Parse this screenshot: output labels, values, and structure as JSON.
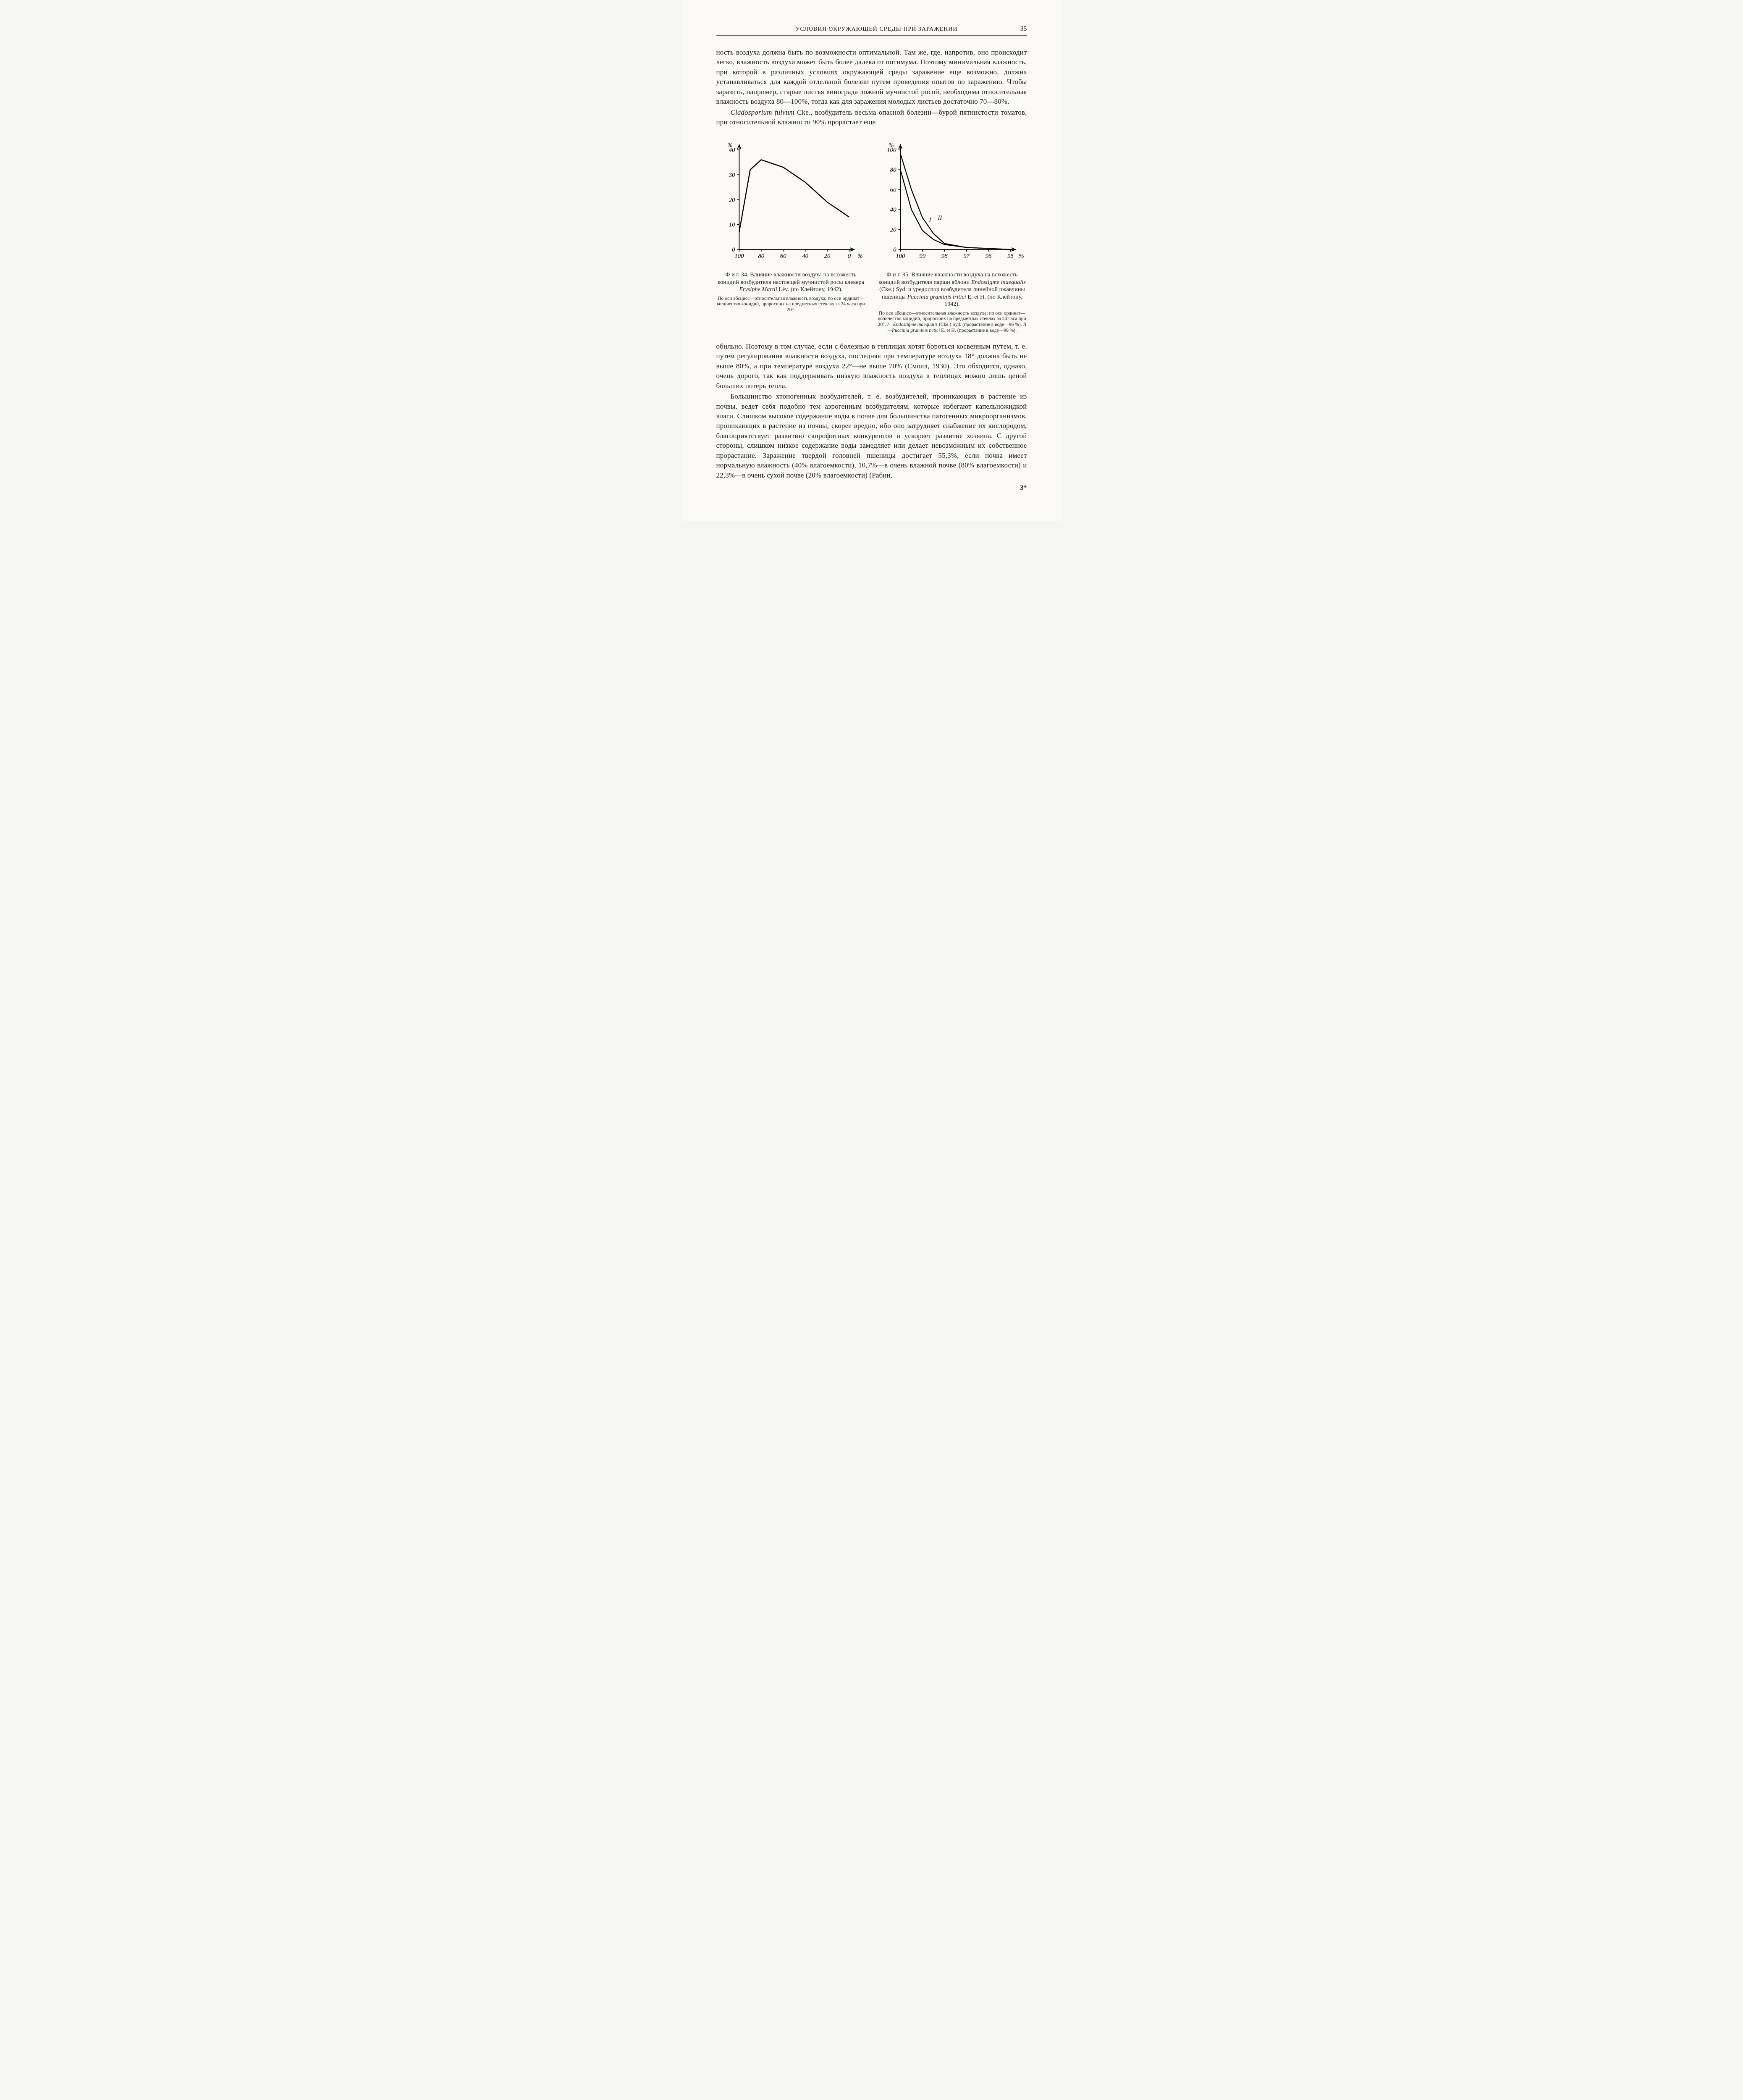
{
  "page": {
    "running_head": "УСЛОВИЯ ОКРУЖАЮЩЕЙ СРЕДЫ ПРИ ЗАРАЖЕНИИ",
    "page_number": "35",
    "signature": "3*"
  },
  "paragraphs": {
    "p1": "ность воздуха должна быть по возможности оптимальной. Там же, где, напротив, оно происходит легко, влажность воздуха может быть более далека от оптимума. Поэтому минимальная влажность, при которой в различных условиях окружающей среды заражение еще возможно, должна устанавливаться для каждой отдельной болезни путем проведения опытов по заражению. Чтобы заразить, например, старые листья винограда ложной мучнистой росой, необходима относительная влажность воздуха 80—100%, тогда как для заражения молодых листьев достаточно 70—80%.",
    "p2_a": "Cladosporium fulvum",
    "p2_b": " Cke., возбудитель весьма опасной болезни—бурой пятнистости томатов, при относительной влажности 90% прорастает еще",
    "p3": "обильно. Поэтому в том случае, если с болезнью в теплицах хотят бороться косвенным путем, т. е. путем регулирования влажности воздуха, последняя при температуре воздуха 18° должна быть не выше 80%, а при температуре воздуха 22°—не выше 70% (Смолл, 1930). Это обходится, однако, очень дорого, так как поддерживать низкую влажность воздуха в теплицах можно лишь ценой больших потерь тепла.",
    "p4": "Большинство хтоногенных возбудителей, т. е. возбудителей, проникающих в растение из почвы, ведет себя подобно тем аэрогенным возбудителям, которые избегают капельножидкой влаги. Слишком высокое содержание воды в почве для большинства патогенных микроорганизмов, проникающих в растение из почвы, скорее вредно, ибо оно затрудняет снабжение их кислородом, благоприятствует развитию сапрофитных конкурентов и ускоряет развитие хозяина. С другой стороны, слишком низкое содержание воды замедляет или делает невозможным их собственное прорастание. Заражение твердой головней пшеницы достигает 55,3%, если почва имеет нормальную влажность (40% влагоемкости), 10,7%—в очень влажной почве (80% влагоемкости) и 22,3%—в очень сухой почве (20% влагоемкости) (Рабин,"
  },
  "fig34": {
    "type": "line",
    "title_a": "Ф и г. 34. Влияние влажности воздуха на всхожесть конидий возбудителя настоящей мучнистой росы клевера ",
    "title_b": "Erysiphe Martii",
    "title_c": " Lév. (по Клейтону, 1942).",
    "sub": "По оси абсцисс—относительная влажность воздуха; по оси ординат—количество конидий, проросших на предметных стеклах за 24 часа при 20°.",
    "x_ticks": [
      "100",
      "80",
      "60",
      "40",
      "20",
      "0"
    ],
    "y_ticks": [
      "0",
      "10",
      "20",
      "30",
      "40"
    ],
    "y_unit": "%",
    "x_unit": "%",
    "line_color": "#000000",
    "axis_color": "#000000",
    "background": "#fbfaf7",
    "line_width": 2.5,
    "x_values": [
      100,
      90,
      80,
      60,
      40,
      20,
      0
    ],
    "y_values": [
      7,
      32,
      36,
      33,
      27,
      19,
      13
    ],
    "xlim": [
      100,
      0
    ],
    "ylim": [
      0,
      40
    ]
  },
  "fig35": {
    "type": "line",
    "title_a": "Ф и г. 35. Влияние влажности воздуха на всхожесть конидий возбудителя парши яблони ",
    "title_b": "Endostigme inaequalis",
    "title_c": " (Cke.) Syd. и уредоспор возбудителя линейной ржавчины пшеницы ",
    "title_d": "Puccinia graminis tritici",
    "title_e": " E. et H. (по Клейтону, 1942).",
    "sub_a": "По оси абсцисс—относительная влажность воздуха; по оси ординат—количество конидий, проросших на предметных стеклах за 24 часа при 20°. ",
    "sub_b": "I—Endostigme inaequalis",
    "sub_c": " (Cke.) Syd. (прорастание в воде—96 %). ",
    "sub_d": "II—Puccinia graminis tritici",
    "sub_e": " E. et H. (прорастание в воде—99 %).",
    "x_ticks": [
      "100",
      "99",
      "98",
      "97",
      "96",
      "95"
    ],
    "y_ticks": [
      "0",
      "20",
      "40",
      "60",
      "80",
      "100"
    ],
    "y_unit": "%",
    "x_unit": "%",
    "line_color": "#000000",
    "axis_color": "#000000",
    "background": "#fbfaf7",
    "line_width": 2.3,
    "series_I_label": "I",
    "series_II_label": "II",
    "series_I_x": [
      100,
      99.5,
      99,
      98.5,
      98,
      97,
      95
    ],
    "series_I_y": [
      80,
      40,
      19,
      10,
      5,
      2,
      0
    ],
    "series_II_x": [
      100,
      99.5,
      99,
      98.5,
      98,
      97,
      95
    ],
    "series_II_y": [
      96,
      60,
      32,
      16,
      6,
      2,
      0
    ],
    "xlim": [
      100,
      95
    ],
    "ylim": [
      0,
      100
    ]
  }
}
